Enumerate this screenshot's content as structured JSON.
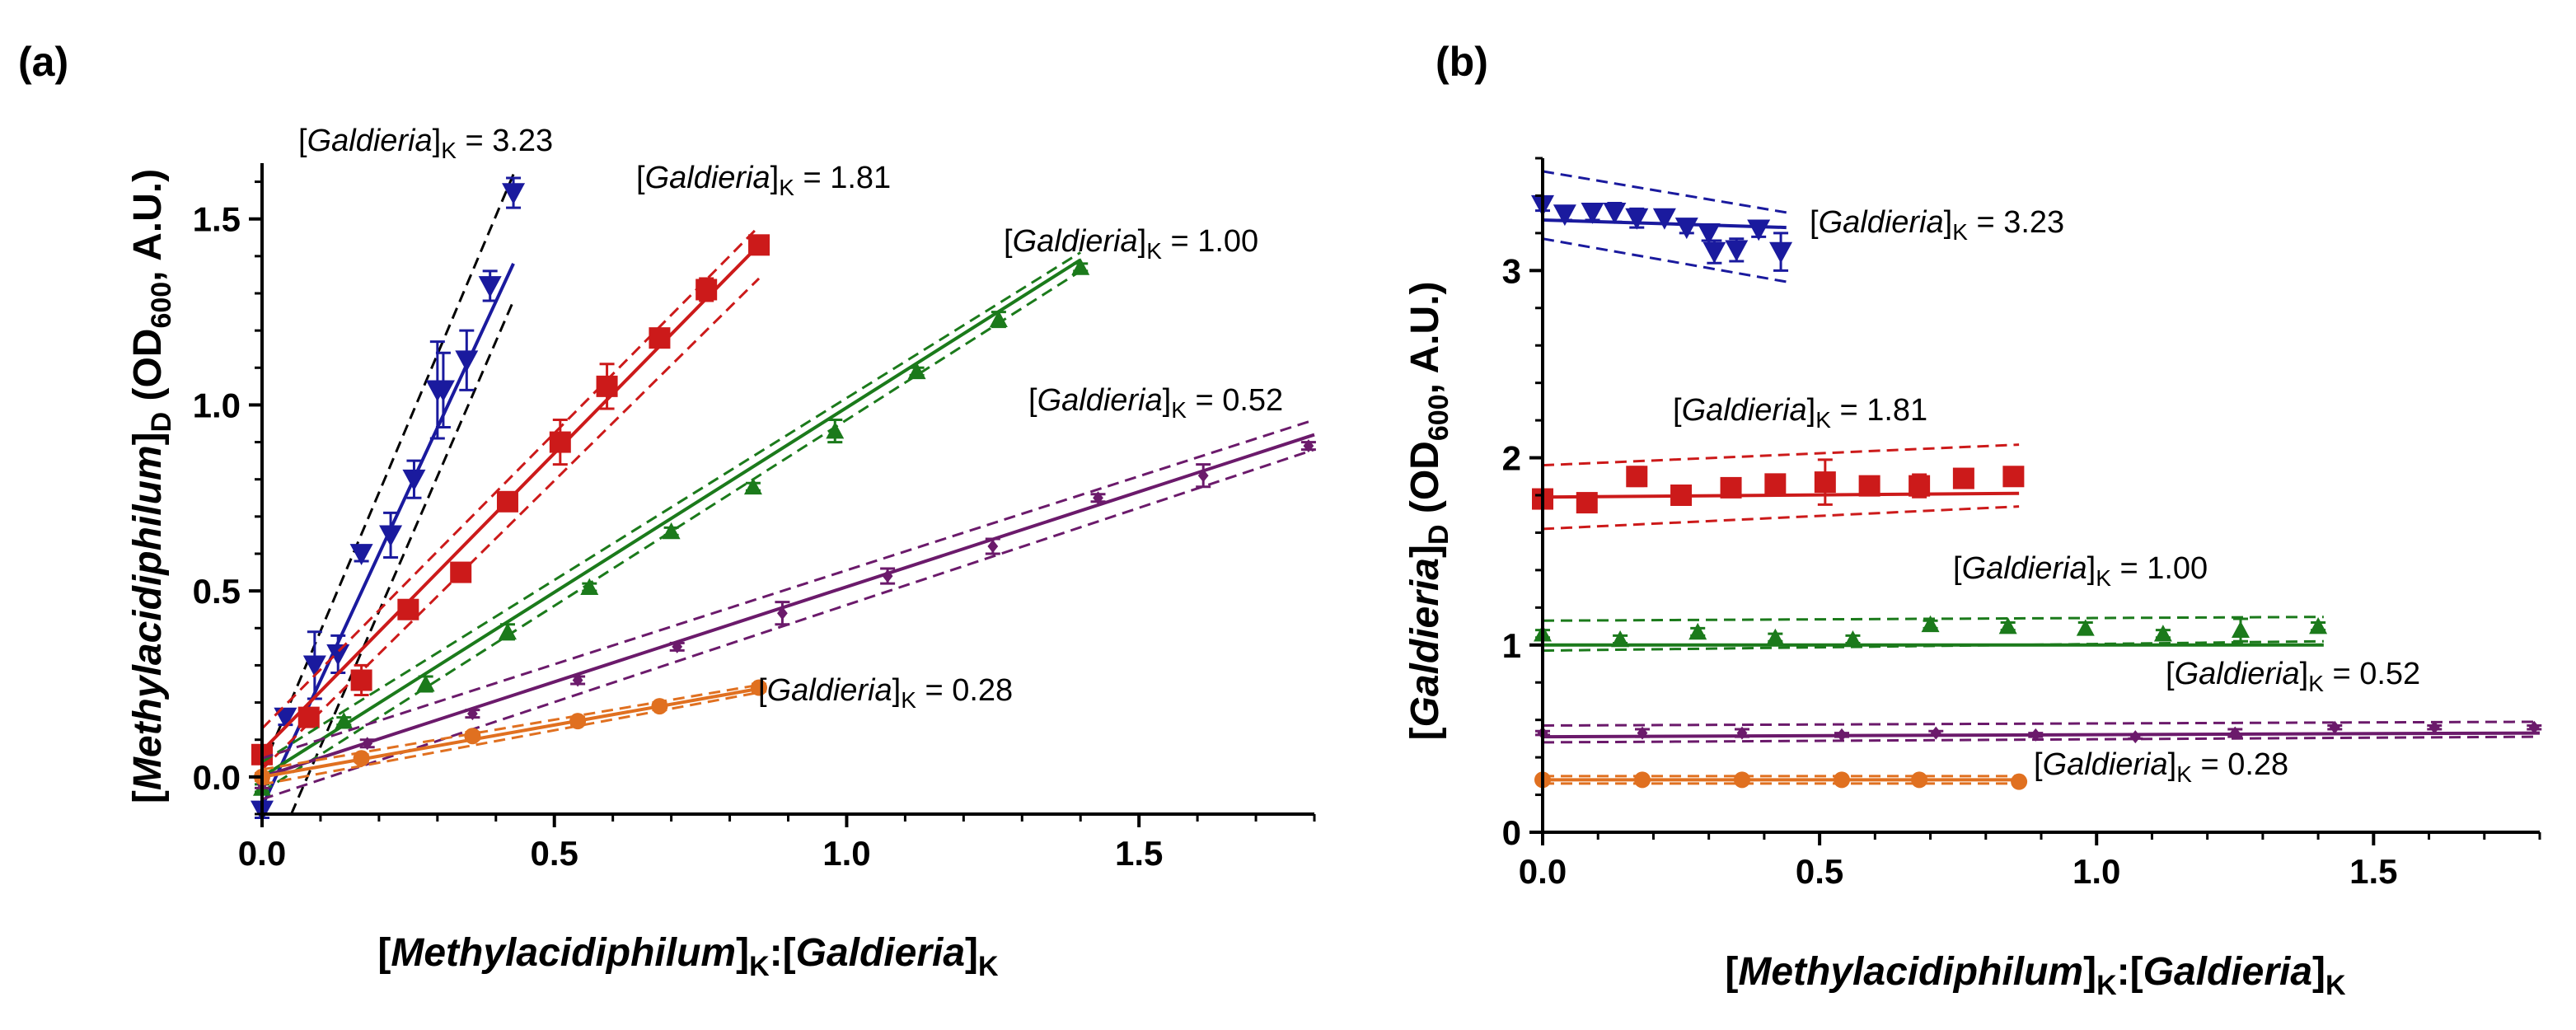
{
  "chart_data": [
    {
      "panel": "(a)",
      "type": "scatter",
      "xlabel": {
        "main": "Methylacidiphilum",
        "sub1": "K",
        "sep": ":",
        "main2": "Galdieria",
        "sub2": "K"
      },
      "ylabel": {
        "main": "Methylacidiphilum",
        "sub1": "D",
        "paren_a": " (OD",
        "sub2": "600",
        "paren_b": ", A.U.)"
      },
      "xlim": [
        0,
        1.8
      ],
      "ylim": [
        -0.1,
        1.65
      ],
      "xticks": [
        "0.0",
        "0.5",
        "1.0",
        "1.5"
      ],
      "yticks": [
        "0.0",
        "0.5",
        "1.0",
        "1.5"
      ],
      "series": [
        {
          "name": "3.23",
          "label_prefix": "Galdieria",
          "label_sub": "K",
          "label_suffix": " = 3.23",
          "color": "#1a1a9e",
          "marker": "triangle-down",
          "band_color": "#000000",
          "x": [
            0.0,
            0.04,
            0.09,
            0.13,
            0.17,
            0.22,
            0.26,
            0.3,
            0.31,
            0.35,
            0.39,
            0.43
          ],
          "y": [
            -0.09,
            0.16,
            0.3,
            0.33,
            0.6,
            0.65,
            0.8,
            1.04,
            1.04,
            1.12,
            1.32,
            1.57
          ],
          "err": [
            0.02,
            0.02,
            0.09,
            0.05,
            0.02,
            0.06,
            0.05,
            0.13,
            0.1,
            0.08,
            0.04,
            0.04
          ],
          "fit": [
            [
              0.0,
              -0.08
            ],
            [
              0.43,
              1.38
            ]
          ],
          "band_lo": [
            [
              0.05,
              -0.1
            ],
            [
              0.43,
              1.28
            ]
          ],
          "band_hi": [
            [
              0.0,
              0.02
            ],
            [
              0.43,
              1.62
            ]
          ]
        },
        {
          "name": "1.81",
          "label_prefix": "Galdieria",
          "label_sub": "K",
          "label_suffix": " = 1.81",
          "color": "#cc1a1a",
          "marker": "square",
          "band_color": "#cc1a1a",
          "x": [
            0.0,
            0.08,
            0.17,
            0.25,
            0.34,
            0.42,
            0.51,
            0.59,
            0.68,
            0.76,
            0.85
          ],
          "y": [
            0.06,
            0.16,
            0.26,
            0.45,
            0.55,
            0.74,
            0.9,
            1.05,
            1.18,
            1.31,
            1.43
          ],
          "err": [
            0.02,
            0.02,
            0.04,
            0.02,
            0.02,
            0.02,
            0.06,
            0.06,
            0.02,
            0.03,
            0.02
          ],
          "fit": [
            [
              0.0,
              0.07
            ],
            [
              0.85,
              1.43
            ]
          ],
          "band_lo": [
            [
              0.0,
              0.02
            ],
            [
              0.85,
              1.34
            ]
          ],
          "band_hi": [
            [
              0.0,
              0.13
            ],
            [
              0.85,
              1.48
            ]
          ]
        },
        {
          "name": "1.00",
          "label_prefix": "Galdieria",
          "label_sub": "K",
          "label_suffix": " = 1.00",
          "color": "#1b7a1b",
          "marker": "triangle-up",
          "band_color": "#1b7a1b",
          "x": [
            0.0,
            0.14,
            0.28,
            0.42,
            0.56,
            0.7,
            0.84,
            0.98,
            1.12,
            1.26,
            1.4
          ],
          "y": [
            -0.03,
            0.15,
            0.25,
            0.39,
            0.51,
            0.66,
            0.78,
            0.93,
            1.09,
            1.23,
            1.37
          ],
          "err": [
            0.01,
            0.01,
            0.02,
            0.02,
            0.01,
            0.01,
            0.01,
            0.03,
            0.01,
            0.02,
            0.01
          ],
          "fit": [
            [
              0.0,
              0.0
            ],
            [
              1.4,
              1.39
            ]
          ],
          "band_lo": [
            [
              0.0,
              -0.04
            ],
            [
              1.4,
              1.36
            ]
          ],
          "band_hi": [
            [
              0.0,
              0.04
            ],
            [
              1.4,
              1.41
            ]
          ]
        },
        {
          "name": "0.52",
          "label_prefix": "Galdieria",
          "label_sub": "K",
          "label_suffix": " = 0.52",
          "color": "#6b1a6b",
          "marker": "diamond",
          "band_color": "#6b1a6b",
          "x": [
            0.0,
            0.18,
            0.36,
            0.54,
            0.71,
            0.89,
            1.07,
            1.25,
            1.43,
            1.61,
            1.79
          ],
          "y": [
            -0.02,
            0.09,
            0.17,
            0.26,
            0.35,
            0.44,
            0.54,
            0.62,
            0.75,
            0.81,
            0.89
          ],
          "err": [
            0.01,
            0.01,
            0.01,
            0.01,
            0.01,
            0.03,
            0.02,
            0.02,
            0.01,
            0.03,
            0.01
          ],
          "fit": [
            [
              0.0,
              0.0
            ],
            [
              1.8,
              0.92
            ]
          ],
          "band_lo": [
            [
              0.0,
              -0.06
            ],
            [
              1.8,
              0.88
            ]
          ],
          "band_hi": [
            [
              0.0,
              0.05
            ],
            [
              1.8,
              0.96
            ]
          ]
        },
        {
          "name": "0.28",
          "label_prefix": "Galdieria",
          "label_sub": "K",
          "label_suffix": " = 0.28",
          "color": "#e07020",
          "marker": "circle",
          "band_color": "#e07020",
          "x": [
            0.0,
            0.17,
            0.36,
            0.54,
            0.68,
            0.85
          ],
          "y": [
            0.0,
            0.05,
            0.11,
            0.15,
            0.19,
            0.24
          ],
          "err": [
            0.01,
            0.01,
            0.01,
            0.01,
            0.01,
            0.01
          ],
          "fit": [
            [
              0.0,
              0.0
            ],
            [
              0.86,
              0.24
            ]
          ],
          "band_lo": [
            [
              0.0,
              -0.02
            ],
            [
              0.86,
              0.23
            ]
          ],
          "band_hi": [
            [
              0.0,
              0.02
            ],
            [
              0.86,
              0.25
            ]
          ]
        }
      ]
    },
    {
      "panel": "(b)",
      "type": "scatter",
      "xlabel": {
        "main": "Methylacidiphilum",
        "sub1": "K",
        "sep": ":",
        "main2": "Galdieria",
        "sub2": "K"
      },
      "ylabel": {
        "main": "Galdieria",
        "sub1": "D",
        "paren_a": " (OD",
        "sub2": "600",
        "paren_b": ", A.U.)"
      },
      "xlim": [
        0,
        1.8
      ],
      "ylim": [
        0,
        3.6
      ],
      "xticks": [
        "0.0",
        "0.5",
        "1.0",
        "1.5"
      ],
      "yticks": [
        "0",
        "1",
        "2",
        "3"
      ],
      "series": [
        {
          "name": "3.23",
          "label_prefix": "Galdieria",
          "label_sub": "K",
          "label_suffix": " = 3.23",
          "color": "#1a1a9e",
          "marker": "triangle-down",
          "band_color": "#1a1a9e",
          "x": [
            0.0,
            0.04,
            0.09,
            0.13,
            0.17,
            0.22,
            0.26,
            0.3,
            0.31,
            0.35,
            0.39,
            0.43
          ],
          "y": [
            3.35,
            3.3,
            3.31,
            3.31,
            3.28,
            3.28,
            3.23,
            3.2,
            3.1,
            3.11,
            3.22,
            3.1
          ],
          "err": [
            0.03,
            0.03,
            0.04,
            0.05,
            0.05,
            0.03,
            0.03,
            0.04,
            0.06,
            0.06,
            0.04,
            0.1
          ],
          "fit": [
            [
              0.0,
              3.27
            ],
            [
              0.44,
              3.23
            ]
          ],
          "band_lo": [
            [
              0.0,
              3.17
            ],
            [
              0.44,
              2.94
            ]
          ],
          "band_hi": [
            [
              0.0,
              3.53
            ],
            [
              0.44,
              3.31
            ]
          ]
        },
        {
          "name": "1.81",
          "label_prefix": "Galdieria",
          "label_sub": "K",
          "label_suffix": " = 1.81",
          "color": "#cc1a1a",
          "marker": "square",
          "band_color": "#cc1a1a",
          "x": [
            0.0,
            0.08,
            0.17,
            0.25,
            0.34,
            0.42,
            0.51,
            0.59,
            0.68,
            0.76,
            0.85
          ],
          "y": [
            1.78,
            1.76,
            1.9,
            1.8,
            1.84,
            1.86,
            1.87,
            1.85,
            1.85,
            1.89,
            1.9
          ],
          "err": [
            0.04,
            0.02,
            0.05,
            0.02,
            0.02,
            0.03,
            0.12,
            0.02,
            0.06,
            0.02,
            0.02
          ],
          "fit": [
            [
              0.0,
              1.79
            ],
            [
              0.86,
              1.81
            ]
          ],
          "band_lo": [
            [
              0.0,
              1.62
            ],
            [
              0.86,
              1.74
            ]
          ],
          "band_hi": [
            [
              0.0,
              1.96
            ],
            [
              0.86,
              2.07
            ]
          ]
        },
        {
          "name": "1.00",
          "label_prefix": "Galdieria",
          "label_sub": "K",
          "label_suffix": " = 1.00",
          "color": "#1b7a1b",
          "marker": "triangle-up",
          "band_color": "#1b7a1b",
          "x": [
            0.0,
            0.14,
            0.28,
            0.42,
            0.56,
            0.7,
            0.84,
            0.98,
            1.12,
            1.26,
            1.4
          ],
          "y": [
            1.06,
            1.03,
            1.07,
            1.04,
            1.03,
            1.11,
            1.1,
            1.09,
            1.06,
            1.08,
            1.1
          ],
          "err": [
            0.02,
            0.02,
            0.02,
            0.02,
            0.02,
            0.02,
            0.02,
            0.03,
            0.02,
            0.06,
            0.02
          ],
          "fit": [
            [
              0.0,
              1.0
            ],
            [
              1.41,
              1.0
            ]
          ],
          "band_lo": [
            [
              0.0,
              0.97
            ],
            [
              1.41,
              1.02
            ]
          ],
          "band_hi": [
            [
              0.0,
              1.13
            ],
            [
              1.41,
              1.15
            ]
          ]
        },
        {
          "name": "0.52",
          "label_prefix": "Galdieria",
          "label_sub": "K",
          "label_suffix": " = 0.52",
          "color": "#6b1a6b",
          "marker": "diamond",
          "band_color": "#6b1a6b",
          "x": [
            0.0,
            0.18,
            0.36,
            0.54,
            0.71,
            0.89,
            1.07,
            1.25,
            1.43,
            1.61,
            1.79
          ],
          "y": [
            0.53,
            0.53,
            0.53,
            0.52,
            0.53,
            0.52,
            0.51,
            0.53,
            0.56,
            0.56,
            0.56
          ],
          "err": [
            0.01,
            0.02,
            0.02,
            0.01,
            0.01,
            0.01,
            0.01,
            0.02,
            0.01,
            0.01,
            0.01
          ],
          "fit": [
            [
              0.0,
              0.51
            ],
            [
              1.8,
              0.53
            ]
          ],
          "band_lo": [
            [
              0.0,
              0.48
            ],
            [
              1.8,
              0.51
            ]
          ],
          "band_hi": [
            [
              0.0,
              0.57
            ],
            [
              1.8,
              0.59
            ]
          ]
        },
        {
          "name": "0.28",
          "label_prefix": "Galdieria",
          "label_sub": "K",
          "label_suffix": " = 0.28",
          "color": "#e07020",
          "marker": "circle",
          "band_color": "#e07020",
          "x": [
            0.0,
            0.18,
            0.36,
            0.54,
            0.68,
            0.86
          ],
          "y": [
            0.28,
            0.28,
            0.28,
            0.28,
            0.28,
            0.27
          ],
          "err": [
            0.01,
            0.01,
            0.01,
            0.01,
            0.01,
            0.01
          ],
          "fit": [
            [
              0.0,
              0.28
            ],
            [
              0.86,
              0.28
            ]
          ],
          "band_lo": [
            [
              0.0,
              0.26
            ],
            [
              0.86,
              0.26
            ]
          ],
          "band_hi": [
            [
              0.0,
              0.3
            ],
            [
              0.86,
              0.3
            ]
          ]
        }
      ]
    }
  ]
}
